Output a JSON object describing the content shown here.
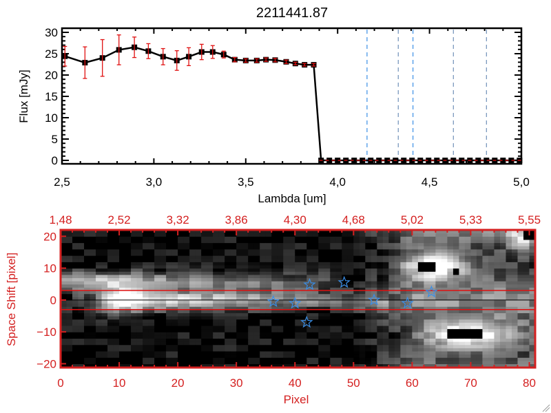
{
  "chart_data": [
    {
      "type": "line",
      "title": "2211441.87",
      "xlabel": "Lambda [um]",
      "ylabel": "Flux [mJy]",
      "xlim": [
        2.5,
        5.0
      ],
      "ylim": [
        -1,
        31
      ],
      "xticks": [
        "2.5",
        "3.0",
        "3.5",
        "4.0",
        "4.5",
        "5.0"
      ],
      "yticks": [
        "0",
        "5",
        "10",
        "15",
        "20",
        "25",
        "30"
      ],
      "colors": {
        "line": "#000000",
        "errorbar": "#e01010",
        "errorbar_small": "#555555",
        "dashed_blue": "#3a8ee6",
        "dashed_zero": "#e01010"
      },
      "series": [
        {
          "x": [
            2.516,
            2.625,
            2.72,
            2.81,
            2.894,
            2.97,
            3.05,
            3.125,
            3.19,
            3.26,
            3.32,
            3.38,
            3.44,
            3.5,
            3.56,
            3.61,
            3.66,
            3.72,
            3.77,
            3.82,
            3.87,
            3.91,
            3.955,
            4.0,
            4.045,
            4.09,
            4.135,
            4.18,
            4.225,
            4.27,
            4.315,
            4.36,
            4.405,
            4.45,
            4.495,
            4.54,
            4.585,
            4.63,
            4.675,
            4.72,
            4.765,
            4.81,
            4.855,
            4.9,
            4.945,
            4.99
          ],
          "y": [
            24.4,
            22.9,
            24.0,
            25.9,
            26.5,
            25.6,
            24.3,
            23.4,
            24.3,
            25.4,
            25.4,
            24.8,
            23.6,
            23.4,
            23.4,
            23.6,
            23.5,
            23.1,
            22.7,
            22.4,
            22.4,
            0,
            0,
            0,
            0,
            0,
            0,
            0,
            0,
            0,
            0,
            0,
            0,
            0,
            0,
            0,
            0,
            0,
            0,
            0,
            0,
            0,
            0,
            0,
            0,
            0
          ],
          "yerr": [
            2.3,
            3.7,
            4.3,
            3.5,
            2.4,
            1.75,
            1.9,
            2.3,
            2.1,
            1.8,
            1.5,
            0.8,
            0.5,
            0.4,
            0.4,
            0.4,
            0.4,
            0.4,
            0.3,
            0.3,
            0.3,
            0,
            0,
            0,
            0,
            0,
            0,
            0,
            0,
            0,
            0,
            0,
            0,
            0,
            0,
            0,
            0,
            0,
            0,
            0,
            0,
            0,
            0,
            0,
            0,
            0
          ]
        }
      ],
      "vertical_dashed_lines": [
        4.16,
        4.33,
        4.41,
        4.63,
        4.81
      ],
      "zero_dashed_line_from": 3.9,
      "grid": false
    },
    {
      "type": "heatmap",
      "xlabel": "Pixel",
      "ylabel": "Space Shift [pixel]",
      "xlim": [
        0,
        81
      ],
      "ylim": [
        -21.2,
        22
      ],
      "xticks": [
        "0",
        "10",
        "20",
        "30",
        "40",
        "50",
        "60",
        "70",
        "80"
      ],
      "yticks": [
        "-20",
        "-10",
        "0",
        "10",
        "20"
      ],
      "top_xticks": [
        "1.48",
        "2.52",
        "3.32",
        "3.86",
        "4.30",
        "4.68",
        "5.02",
        "5.33",
        "5.55"
      ],
      "colormap": "grayscale",
      "colors": {
        "axes": "#d42020",
        "stars": "#3a8ee6",
        "aperture_lines": "#e01010",
        "center_line": "#000000"
      },
      "aperture_lines_y": [
        3,
        -3
      ],
      "center_line_y": 0,
      "stars": [
        {
          "x": 36.3,
          "y": -0.5
        },
        {
          "x": 40.0,
          "y": -1.0
        },
        {
          "x": 42.5,
          "y": 4.8
        },
        {
          "x": 42.0,
          "y": -7.0
        },
        {
          "x": 48.4,
          "y": 5.5
        },
        {
          "x": 53.5,
          "y": 0.0
        },
        {
          "x": 59.2,
          "y": -1.0
        },
        {
          "x": 63.3,
          "y": 2.5
        }
      ],
      "grid": false
    }
  ]
}
